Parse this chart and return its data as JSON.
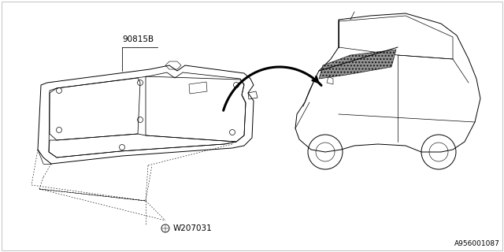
{
  "bg_color": "#ffffff",
  "diagram_id": "A956001087",
  "part_label_1": "90815B",
  "part_label_2": "W207031",
  "line_color": "#000000",
  "line_width": 0.7,
  "fig_width": 6.4,
  "fig_height": 3.2,
  "dpi": 100
}
